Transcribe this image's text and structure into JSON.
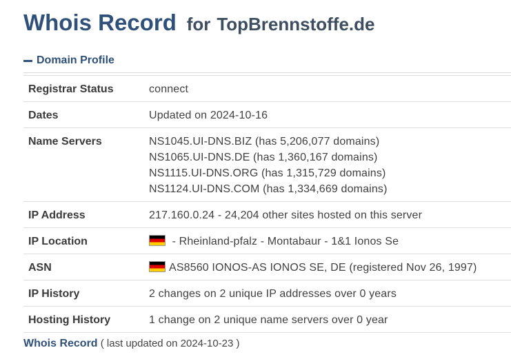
{
  "header": {
    "title": "Whois Record",
    "for_label": "for",
    "domain": "TopBrennstoffe.de"
  },
  "section": {
    "label": "Domain Profile"
  },
  "profile": {
    "registrar_status": {
      "key": "Registrar Status",
      "value": "connect"
    },
    "dates": {
      "key": "Dates",
      "value": "Updated on 2024-10-16"
    },
    "name_servers": {
      "key": "Name Servers",
      "values": [
        "NS1045.UI-DNS.BIZ (has 5,206,077 domains)",
        "NS1065.UI-DNS.DE (has 1,360,167 domains)",
        "NS1115.UI-DNS.ORG (has 1,315,729 domains)",
        "NS1124.UI-DNS.COM (has 1,334,669 domains)"
      ]
    },
    "ip_address": {
      "key": "IP Address",
      "value": "217.160.0.24 - 24,204 other sites hosted on this server"
    },
    "ip_location": {
      "key": "IP Location",
      "value": " - Rheinland-pfalz - Montabaur - 1&1 Ionos Se",
      "flag": "de-flag-icon"
    },
    "asn": {
      "key": "ASN",
      "value": "AS8560 IONOS-AS IONOS SE, DE (registered Nov 26, 1997)",
      "flag": "de-flag-icon"
    },
    "ip_history": {
      "key": "IP History",
      "value": "2 changes on 2 unique IP addresses over 0 years"
    },
    "hosting_history": {
      "key": "Hosting History",
      "value": "1 change on 2 unique name servers over 0 year"
    }
  },
  "footer": {
    "link": "Whois Record",
    "note": " ( last updated on 2024-10-23 )"
  },
  "colors": {
    "heading": "#2f5179",
    "text": "#404040",
    "border": "#dedede"
  }
}
